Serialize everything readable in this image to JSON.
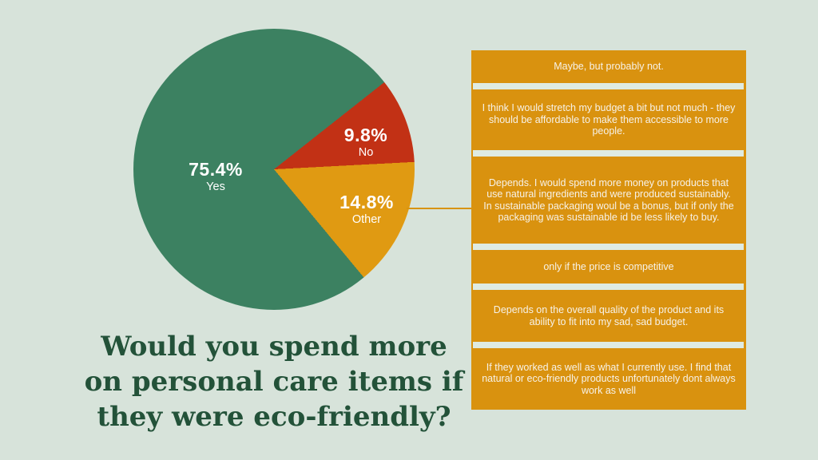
{
  "background_color": "#d7e3da",
  "separator_color": "#dfebe2",
  "chart_data": {
    "type": "pie",
    "title": "Would you spend more on personal care items if they were eco-friendly?",
    "slices": [
      {
        "label": "Yes",
        "value": 75.4,
        "display": "75.4%",
        "color": "#3c8161"
      },
      {
        "label": "No",
        "value": 9.8,
        "display": "9.8%",
        "color": "#c23115"
      },
      {
        "label": "Other",
        "value": 14.8,
        "display": "14.8%",
        "color": "#e09a12"
      }
    ],
    "red_orange_boundary_conic_deg": 87,
    "labels_on_slices": true,
    "legend": "none"
  },
  "title": {
    "color": "#235239",
    "line1": "Would you spend more",
    "line2": "on personal care items if",
    "line3": "they were eco-friendly?"
  },
  "connector": {
    "color": "#d8940f"
  },
  "responses": {
    "box_color": "#d9920f",
    "items": [
      "Maybe, but probably not.",
      "I think I would stretch my budget a bit but not much - they should be affordable to make them accessible to more people.",
      "Depends. I would spend more money on products that use natural ingredients and were produced sustainably. In sustainable packaging woul be a bonus, but if only the packaging was sustainable id be less likely to buy.",
      "only if the price is competitive",
      "Depends on the overall quality of the product and its ability to fit into my sad, sad budget.",
      "If they worked as well as what I currently use. I find that natural or eco-friendly products unfortunately dont always work as well"
    ]
  }
}
